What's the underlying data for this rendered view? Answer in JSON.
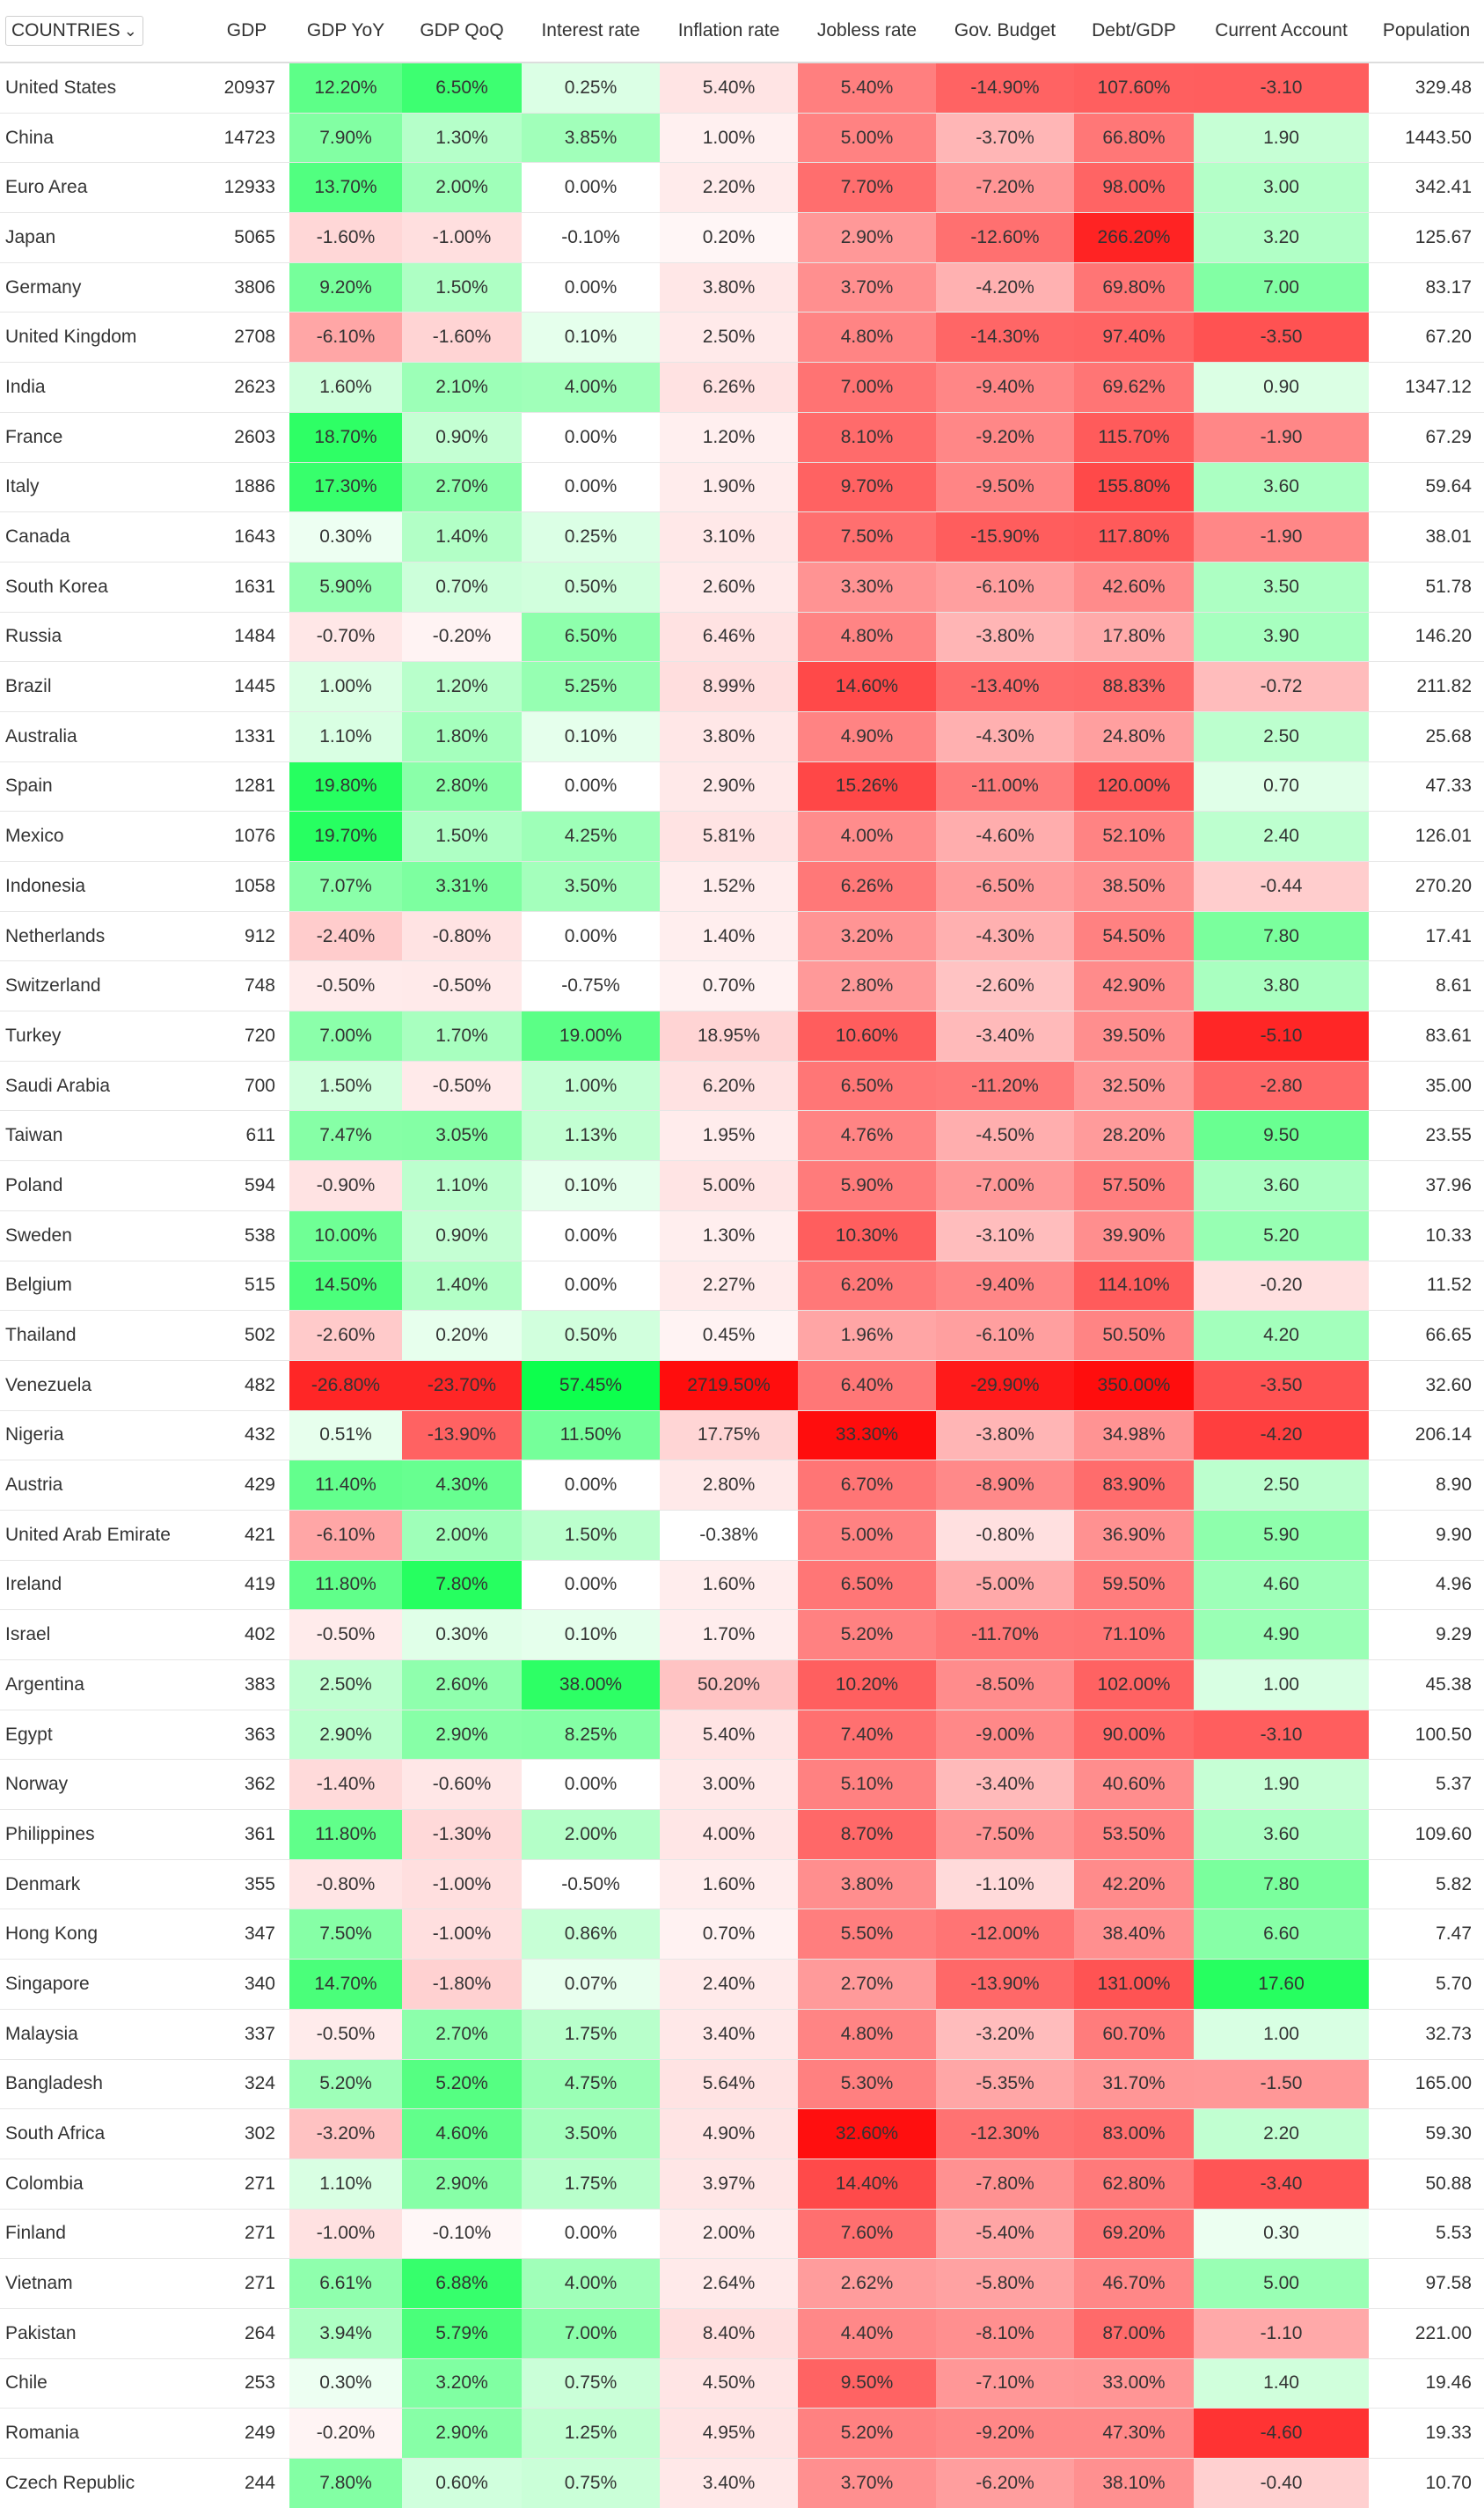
{
  "header": {
    "select": {
      "value": "COUNTRIES",
      "icon": "chevron-down-icon"
    },
    "columns": [
      "GDP",
      "GDP YoY",
      "GDP QoQ",
      "Interest rate",
      "Inflation rate",
      "Jobless rate",
      "Gov. Budget",
      "Debt/GDP",
      "Current Account",
      "Population"
    ]
  },
  "colors": {
    "positive": "#00ff44",
    "negative": "#ff0000",
    "row_separator": "#dddddd"
  },
  "rows": [
    {
      "country": "United States",
      "gdp": "20937",
      "yoy": "12.20%",
      "qoq": "6.50%",
      "interest": "0.25%",
      "inflation": "5.40%",
      "jobless": "5.40%",
      "budget": "-14.90%",
      "debt": "107.60%",
      "current": "-3.10",
      "population": "329.48"
    },
    {
      "country": "China",
      "gdp": "14723",
      "yoy": "7.90%",
      "qoq": "1.30%",
      "interest": "3.85%",
      "inflation": "1.00%",
      "jobless": "5.00%",
      "budget": "-3.70%",
      "debt": "66.80%",
      "current": "1.90",
      "population": "1443.50"
    },
    {
      "country": "Euro Area",
      "gdp": "12933",
      "yoy": "13.70%",
      "qoq": "2.00%",
      "interest": "0.00%",
      "inflation": "2.20%",
      "jobless": "7.70%",
      "budget": "-7.20%",
      "debt": "98.00%",
      "current": "3.00",
      "population": "342.41"
    },
    {
      "country": "Japan",
      "gdp": "5065",
      "yoy": "-1.60%",
      "qoq": "-1.00%",
      "interest": "-0.10%",
      "inflation": "0.20%",
      "jobless": "2.90%",
      "budget": "-12.60%",
      "debt": "266.20%",
      "current": "3.20",
      "population": "125.67"
    },
    {
      "country": "Germany",
      "gdp": "3806",
      "yoy": "9.20%",
      "qoq": "1.50%",
      "interest": "0.00%",
      "inflation": "3.80%",
      "jobless": "3.70%",
      "budget": "-4.20%",
      "debt": "69.80%",
      "current": "7.00",
      "population": "83.17"
    },
    {
      "country": "United Kingdom",
      "gdp": "2708",
      "yoy": "-6.10%",
      "qoq": "-1.60%",
      "interest": "0.10%",
      "inflation": "2.50%",
      "jobless": "4.80%",
      "budget": "-14.30%",
      "debt": "97.40%",
      "current": "-3.50",
      "population": "67.20"
    },
    {
      "country": "India",
      "gdp": "2623",
      "yoy": "1.60%",
      "qoq": "2.10%",
      "interest": "4.00%",
      "inflation": "6.26%",
      "jobless": "7.00%",
      "budget": "-9.40%",
      "debt": "69.62%",
      "current": "0.90",
      "population": "1347.12"
    },
    {
      "country": "France",
      "gdp": "2603",
      "yoy": "18.70%",
      "qoq": "0.90%",
      "interest": "0.00%",
      "inflation": "1.20%",
      "jobless": "8.10%",
      "budget": "-9.20%",
      "debt": "115.70%",
      "current": "-1.90",
      "population": "67.29"
    },
    {
      "country": "Italy",
      "gdp": "1886",
      "yoy": "17.30%",
      "qoq": "2.70%",
      "interest": "0.00%",
      "inflation": "1.90%",
      "jobless": "9.70%",
      "budget": "-9.50%",
      "debt": "155.80%",
      "current": "3.60",
      "population": "59.64"
    },
    {
      "country": "Canada",
      "gdp": "1643",
      "yoy": "0.30%",
      "qoq": "1.40%",
      "interest": "0.25%",
      "inflation": "3.10%",
      "jobless": "7.50%",
      "budget": "-15.90%",
      "debt": "117.80%",
      "current": "-1.90",
      "population": "38.01"
    },
    {
      "country": "South Korea",
      "gdp": "1631",
      "yoy": "5.90%",
      "qoq": "0.70%",
      "interest": "0.50%",
      "inflation": "2.60%",
      "jobless": "3.30%",
      "budget": "-6.10%",
      "debt": "42.60%",
      "current": "3.50",
      "population": "51.78"
    },
    {
      "country": "Russia",
      "gdp": "1484",
      "yoy": "-0.70%",
      "qoq": "-0.20%",
      "interest": "6.50%",
      "inflation": "6.46%",
      "jobless": "4.80%",
      "budget": "-3.80%",
      "debt": "17.80%",
      "current": "3.90",
      "population": "146.20"
    },
    {
      "country": "Brazil",
      "gdp": "1445",
      "yoy": "1.00%",
      "qoq": "1.20%",
      "interest": "5.25%",
      "inflation": "8.99%",
      "jobless": "14.60%",
      "budget": "-13.40%",
      "debt": "88.83%",
      "current": "-0.72",
      "population": "211.82"
    },
    {
      "country": "Australia",
      "gdp": "1331",
      "yoy": "1.10%",
      "qoq": "1.80%",
      "interest": "0.10%",
      "inflation": "3.80%",
      "jobless": "4.90%",
      "budget": "-4.30%",
      "debt": "24.80%",
      "current": "2.50",
      "population": "25.68"
    },
    {
      "country": "Spain",
      "gdp": "1281",
      "yoy": "19.80%",
      "qoq": "2.80%",
      "interest": "0.00%",
      "inflation": "2.90%",
      "jobless": "15.26%",
      "budget": "-11.00%",
      "debt": "120.00%",
      "current": "0.70",
      "population": "47.33"
    },
    {
      "country": "Mexico",
      "gdp": "1076",
      "yoy": "19.70%",
      "qoq": "1.50%",
      "interest": "4.25%",
      "inflation": "5.81%",
      "jobless": "4.00%",
      "budget": "-4.60%",
      "debt": "52.10%",
      "current": "2.40",
      "population": "126.01"
    },
    {
      "country": "Indonesia",
      "gdp": "1058",
      "yoy": "7.07%",
      "qoq": "3.31%",
      "interest": "3.50%",
      "inflation": "1.52%",
      "jobless": "6.26%",
      "budget": "-6.50%",
      "debt": "38.50%",
      "current": "-0.44",
      "population": "270.20"
    },
    {
      "country": "Netherlands",
      "gdp": "912",
      "yoy": "-2.40%",
      "qoq": "-0.80%",
      "interest": "0.00%",
      "inflation": "1.40%",
      "jobless": "3.20%",
      "budget": "-4.30%",
      "debt": "54.50%",
      "current": "7.80",
      "population": "17.41"
    },
    {
      "country": "Switzerland",
      "gdp": "748",
      "yoy": "-0.50%",
      "qoq": "-0.50%",
      "interest": "-0.75%",
      "inflation": "0.70%",
      "jobless": "2.80%",
      "budget": "-2.60%",
      "debt": "42.90%",
      "current": "3.80",
      "population": "8.61"
    },
    {
      "country": "Turkey",
      "gdp": "720",
      "yoy": "7.00%",
      "qoq": "1.70%",
      "interest": "19.00%",
      "inflation": "18.95%",
      "jobless": "10.60%",
      "budget": "-3.40%",
      "debt": "39.50%",
      "current": "-5.10",
      "population": "83.61"
    },
    {
      "country": "Saudi Arabia",
      "gdp": "700",
      "yoy": "1.50%",
      "qoq": "-0.50%",
      "interest": "1.00%",
      "inflation": "6.20%",
      "jobless": "6.50%",
      "budget": "-11.20%",
      "debt": "32.50%",
      "current": "-2.80",
      "population": "35.00"
    },
    {
      "country": "Taiwan",
      "gdp": "611",
      "yoy": "7.47%",
      "qoq": "3.05%",
      "interest": "1.13%",
      "inflation": "1.95%",
      "jobless": "4.76%",
      "budget": "-4.50%",
      "debt": "28.20%",
      "current": "9.50",
      "population": "23.55"
    },
    {
      "country": "Poland",
      "gdp": "594",
      "yoy": "-0.90%",
      "qoq": "1.10%",
      "interest": "0.10%",
      "inflation": "5.00%",
      "jobless": "5.90%",
      "budget": "-7.00%",
      "debt": "57.50%",
      "current": "3.60",
      "population": "37.96"
    },
    {
      "country": "Sweden",
      "gdp": "538",
      "yoy": "10.00%",
      "qoq": "0.90%",
      "interest": "0.00%",
      "inflation": "1.30%",
      "jobless": "10.30%",
      "budget": "-3.10%",
      "debt": "39.90%",
      "current": "5.20",
      "population": "10.33"
    },
    {
      "country": "Belgium",
      "gdp": "515",
      "yoy": "14.50%",
      "qoq": "1.40%",
      "interest": "0.00%",
      "inflation": "2.27%",
      "jobless": "6.20%",
      "budget": "-9.40%",
      "debt": "114.10%",
      "current": "-0.20",
      "population": "11.52"
    },
    {
      "country": "Thailand",
      "gdp": "502",
      "yoy": "-2.60%",
      "qoq": "0.20%",
      "interest": "0.50%",
      "inflation": "0.45%",
      "jobless": "1.96%",
      "budget": "-6.10%",
      "debt": "50.50%",
      "current": "4.20",
      "population": "66.65"
    },
    {
      "country": "Venezuela",
      "gdp": "482",
      "yoy": "-26.80%",
      "qoq": "-23.70%",
      "interest": "57.45%",
      "inflation": "2719.50%",
      "jobless": "6.40%",
      "budget": "-29.90%",
      "debt": "350.00%",
      "current": "-3.50",
      "population": "32.60"
    },
    {
      "country": "Nigeria",
      "gdp": "432",
      "yoy": "0.51%",
      "qoq": "-13.90%",
      "interest": "11.50%",
      "inflation": "17.75%",
      "jobless": "33.30%",
      "budget": "-3.80%",
      "debt": "34.98%",
      "current": "-4.20",
      "population": "206.14"
    },
    {
      "country": "Austria",
      "gdp": "429",
      "yoy": "11.40%",
      "qoq": "4.30%",
      "interest": "0.00%",
      "inflation": "2.80%",
      "jobless": "6.70%",
      "budget": "-8.90%",
      "debt": "83.90%",
      "current": "2.50",
      "population": "8.90"
    },
    {
      "country": "United Arab Emirate",
      "gdp": "421",
      "yoy": "-6.10%",
      "qoq": "2.00%",
      "interest": "1.50%",
      "inflation": "-0.38%",
      "jobless": "5.00%",
      "budget": "-0.80%",
      "debt": "36.90%",
      "current": "5.90",
      "population": "9.90"
    },
    {
      "country": "Ireland",
      "gdp": "419",
      "yoy": "11.80%",
      "qoq": "7.80%",
      "interest": "0.00%",
      "inflation": "1.60%",
      "jobless": "6.50%",
      "budget": "-5.00%",
      "debt": "59.50%",
      "current": "4.60",
      "population": "4.96"
    },
    {
      "country": "Israel",
      "gdp": "402",
      "yoy": "-0.50%",
      "qoq": "0.30%",
      "interest": "0.10%",
      "inflation": "1.70%",
      "jobless": "5.20%",
      "budget": "-11.70%",
      "debt": "71.10%",
      "current": "4.90",
      "population": "9.29"
    },
    {
      "country": "Argentina",
      "gdp": "383",
      "yoy": "2.50%",
      "qoq": "2.60%",
      "interest": "38.00%",
      "inflation": "50.20%",
      "jobless": "10.20%",
      "budget": "-8.50%",
      "debt": "102.00%",
      "current": "1.00",
      "population": "45.38"
    },
    {
      "country": "Egypt",
      "gdp": "363",
      "yoy": "2.90%",
      "qoq": "2.90%",
      "interest": "8.25%",
      "inflation": "5.40%",
      "jobless": "7.40%",
      "budget": "-9.00%",
      "debt": "90.00%",
      "current": "-3.10",
      "population": "100.50"
    },
    {
      "country": "Norway",
      "gdp": "362",
      "yoy": "-1.40%",
      "qoq": "-0.60%",
      "interest": "0.00%",
      "inflation": "3.00%",
      "jobless": "5.10%",
      "budget": "-3.40%",
      "debt": "40.60%",
      "current": "1.90",
      "population": "5.37"
    },
    {
      "country": "Philippines",
      "gdp": "361",
      "yoy": "11.80%",
      "qoq": "-1.30%",
      "interest": "2.00%",
      "inflation": "4.00%",
      "jobless": "8.70%",
      "budget": "-7.50%",
      "debt": "53.50%",
      "current": "3.60",
      "population": "109.60"
    },
    {
      "country": "Denmark",
      "gdp": "355",
      "yoy": "-0.80%",
      "qoq": "-1.00%",
      "interest": "-0.50%",
      "inflation": "1.60%",
      "jobless": "3.80%",
      "budget": "-1.10%",
      "debt": "42.20%",
      "current": "7.80",
      "population": "5.82"
    },
    {
      "country": "Hong Kong",
      "gdp": "347",
      "yoy": "7.50%",
      "qoq": "-1.00%",
      "interest": "0.86%",
      "inflation": "0.70%",
      "jobless": "5.50%",
      "budget": "-12.00%",
      "debt": "38.40%",
      "current": "6.60",
      "population": "7.47"
    },
    {
      "country": "Singapore",
      "gdp": "340",
      "yoy": "14.70%",
      "qoq": "-1.80%",
      "interest": "0.07%",
      "inflation": "2.40%",
      "jobless": "2.70%",
      "budget": "-13.90%",
      "debt": "131.00%",
      "current": "17.60",
      "population": "5.70"
    },
    {
      "country": "Malaysia",
      "gdp": "337",
      "yoy": "-0.50%",
      "qoq": "2.70%",
      "interest": "1.75%",
      "inflation": "3.40%",
      "jobless": "4.80%",
      "budget": "-3.20%",
      "debt": "60.70%",
      "current": "1.00",
      "population": "32.73"
    },
    {
      "country": "Bangladesh",
      "gdp": "324",
      "yoy": "5.20%",
      "qoq": "5.20%",
      "interest": "4.75%",
      "inflation": "5.64%",
      "jobless": "5.30%",
      "budget": "-5.35%",
      "debt": "31.70%",
      "current": "-1.50",
      "population": "165.00"
    },
    {
      "country": "South Africa",
      "gdp": "302",
      "yoy": "-3.20%",
      "qoq": "4.60%",
      "interest": "3.50%",
      "inflation": "4.90%",
      "jobless": "32.60%",
      "budget": "-12.30%",
      "debt": "83.00%",
      "current": "2.20",
      "population": "59.30"
    },
    {
      "country": "Colombia",
      "gdp": "271",
      "yoy": "1.10%",
      "qoq": "2.90%",
      "interest": "1.75%",
      "inflation": "3.97%",
      "jobless": "14.40%",
      "budget": "-7.80%",
      "debt": "62.80%",
      "current": "-3.40",
      "population": "50.88"
    },
    {
      "country": "Finland",
      "gdp": "271",
      "yoy": "-1.00%",
      "qoq": "-0.10%",
      "interest": "0.00%",
      "inflation": "2.00%",
      "jobless": "7.60%",
      "budget": "-5.40%",
      "debt": "69.20%",
      "current": "0.30",
      "population": "5.53"
    },
    {
      "country": "Vietnam",
      "gdp": "271",
      "yoy": "6.61%",
      "qoq": "6.88%",
      "interest": "4.00%",
      "inflation": "2.64%",
      "jobless": "2.62%",
      "budget": "-5.80%",
      "debt": "46.70%",
      "current": "5.00",
      "population": "97.58"
    },
    {
      "country": "Pakistan",
      "gdp": "264",
      "yoy": "3.94%",
      "qoq": "5.79%",
      "interest": "7.00%",
      "inflation": "8.40%",
      "jobless": "4.40%",
      "budget": "-8.10%",
      "debt": "87.00%",
      "current": "-1.10",
      "population": "221.00"
    },
    {
      "country": "Chile",
      "gdp": "253",
      "yoy": "0.30%",
      "qoq": "3.20%",
      "interest": "0.75%",
      "inflation": "4.50%",
      "jobless": "9.50%",
      "budget": "-7.10%",
      "debt": "33.00%",
      "current": "1.40",
      "population": "19.46"
    },
    {
      "country": "Romania",
      "gdp": "249",
      "yoy": "-0.20%",
      "qoq": "2.90%",
      "interest": "1.25%",
      "inflation": "4.95%",
      "jobless": "5.20%",
      "budget": "-9.20%",
      "debt": "47.30%",
      "current": "-4.60",
      "population": "19.33"
    },
    {
      "country": "Czech Republic",
      "gdp": "244",
      "yoy": "7.80%",
      "qoq": "0.60%",
      "interest": "0.75%",
      "inflation": "3.40%",
      "jobless": "3.70%",
      "budget": "-6.20%",
      "debt": "38.10%",
      "current": "-0.40",
      "population": "10.70"
    }
  ]
}
